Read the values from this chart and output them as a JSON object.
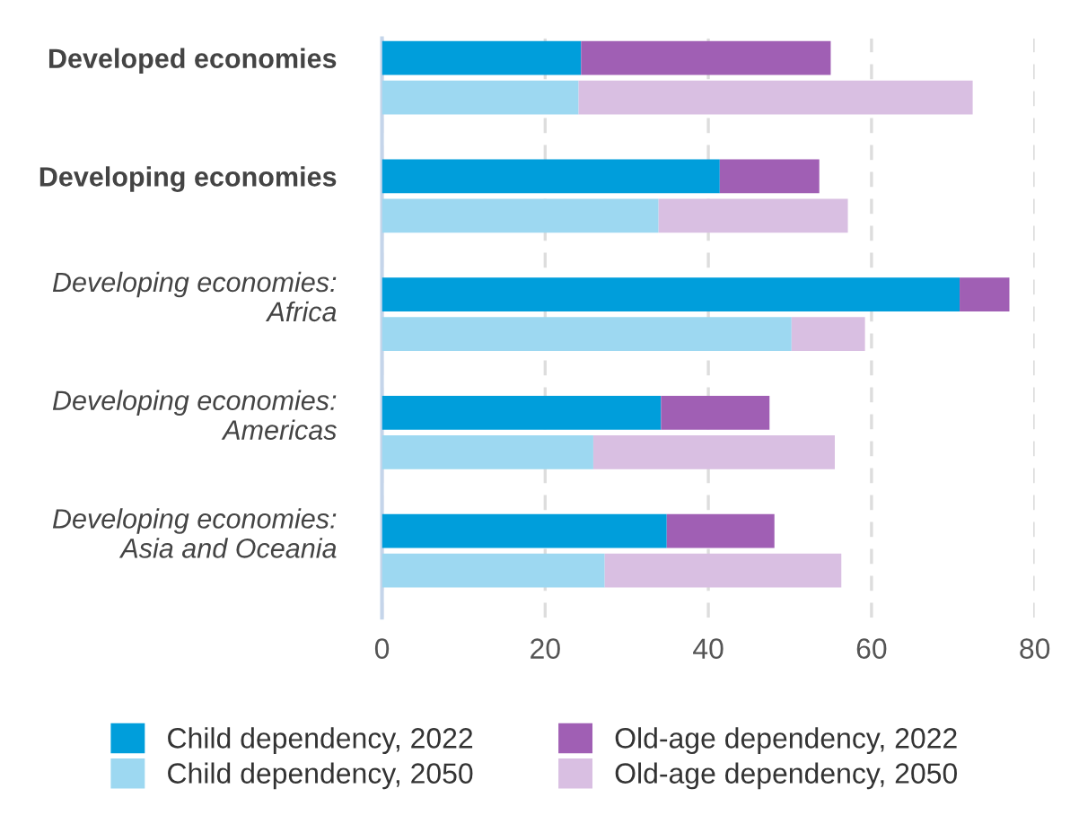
{
  "chart_data": {
    "type": "bar",
    "orientation": "horizontal",
    "stacked": true,
    "categories": [
      "Developed economies",
      null,
      null,
      "Developing economies",
      null,
      null,
      "Developing economies:\nAfrica",
      null,
      null,
      "Developing economies:\nAmericas",
      null,
      null,
      "Developing economies:\nAsia and Oceania",
      null
    ],
    "series": [
      {
        "name": "Child dependency, 2022",
        "color": "#009edb",
        "values": [
          24.4,
          null,
          null,
          41.4,
          null,
          null,
          70.8,
          null,
          null,
          34.2,
          null,
          null,
          34.9,
          null
        ]
      },
      {
        "name": "Old-age dependency, 2022",
        "color": "#a05fb4",
        "values": [
          30.6,
          null,
          null,
          12.2,
          null,
          null,
          6.1,
          null,
          null,
          13.3,
          null,
          null,
          13.2,
          null
        ]
      },
      {
        "name": "Child dependency, 2050",
        "color": "#9dd8f1",
        "values": [
          null,
          24.1,
          null,
          null,
          33.9,
          null,
          null,
          50.2,
          null,
          null,
          25.9,
          null,
          null,
          27.3
        ]
      },
      {
        "name": "Old-age dependency, 2050",
        "color": "#d9bfe2",
        "values": [
          null,
          48.3,
          null,
          null,
          23.2,
          null,
          null,
          9.0,
          null,
          null,
          29.6,
          null,
          null,
          29.0
        ]
      }
    ],
    "xlim": [
      0,
      80
    ],
    "xticks": [
      0,
      20,
      40,
      60,
      80
    ],
    "grid": "x",
    "legend": "bottom"
  }
}
